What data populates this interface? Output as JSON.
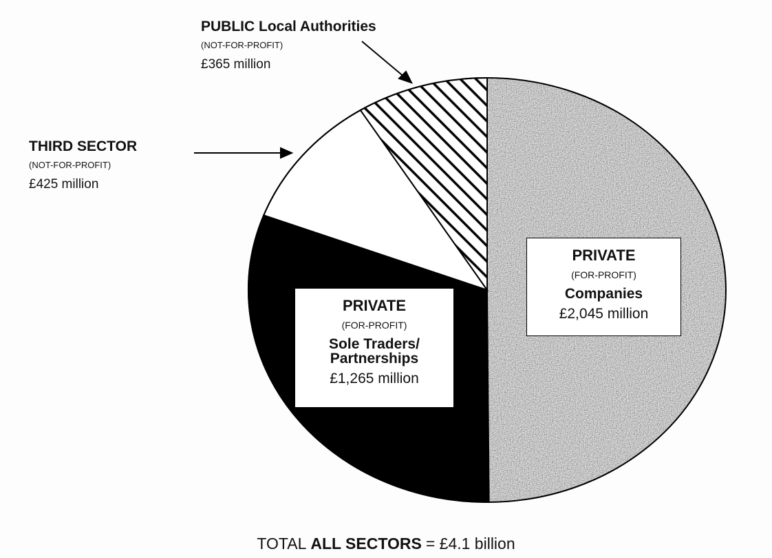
{
  "chart_data": {
    "type": "pie",
    "categories": [
      "Companies",
      "Sole Traders/ Partnerships",
      "THIRD SECTOR",
      "PUBLIC Local Authorities"
    ],
    "sectors": [
      "PRIVATE",
      "PRIVATE",
      null,
      null
    ],
    "profit_status": [
      "(FOR-PROFIT)",
      "(FOR-PROFIT)",
      "(NOT-FOR-PROFIT)",
      "(NOT-FOR-PROFIT)"
    ],
    "values": [
      2045,
      1265,
      425,
      365
    ],
    "value_labels": [
      "£2,045 million",
      "£1,265 million",
      "£425 million",
      "£365 million"
    ],
    "colors": [
      "#8a8a8a",
      "#000000",
      "#ffffff",
      "#ffffff"
    ],
    "patterns": [
      "speckle",
      null,
      null,
      "diagonal-hatch"
    ],
    "total": {
      "prefix": "TOTAL",
      "emphasis": "ALL SECTORS",
      "value": "= £4.1 billion"
    }
  }
}
